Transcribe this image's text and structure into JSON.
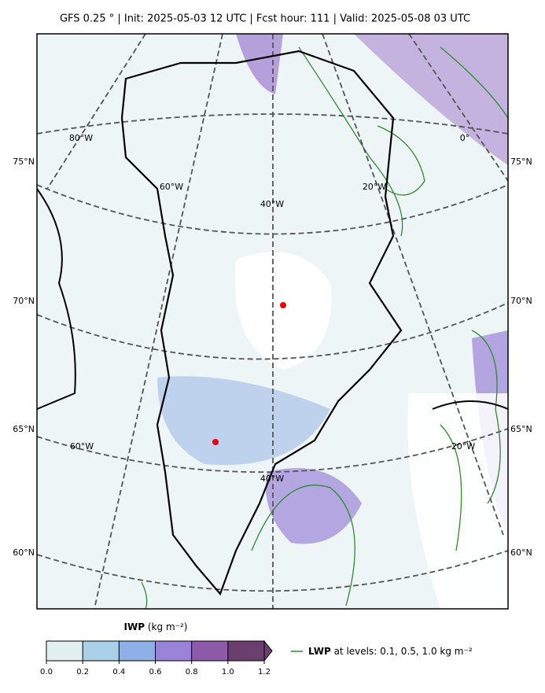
{
  "header": {
    "title": "GFS 0.25 °  |  Init: 2025-05-03 12 UTC  |  Fcst hour: 111  |  Valid: 2025-05-08 03 UTC"
  },
  "map": {
    "lat_labels_left": [
      "75°N",
      "70°N",
      "65°N",
      "60°N"
    ],
    "lat_labels_right": [
      "75°N",
      "70°N",
      "65°N",
      "60°N"
    ],
    "lon_labels": [
      "80°W",
      "60°W",
      "40°W",
      "20°W",
      "0°",
      "60°W",
      "40°W",
      "20°W"
    ]
  },
  "colorbar": {
    "label_bold": "IWP",
    "label_unit": "(kg m⁻²)",
    "ticks": [
      {
        "value": 0,
        "label": "0.0"
      },
      {
        "value": 0.2,
        "label": "0.2"
      },
      {
        "value": 0.4,
        "label": "0.4"
      },
      {
        "value": 0.6,
        "label": "0.6"
      },
      {
        "value": 0.8,
        "label": "0.8"
      },
      {
        "value": 1.0,
        "label": "1.0"
      },
      {
        "value": 1.2,
        "label": "1.2"
      }
    ],
    "colors": [
      "#e3f0f2",
      "#a9d0e6",
      "#8fb0e6",
      "#9a82d8",
      "#8c5aa8",
      "#6a3f6e"
    ]
  },
  "legend": {
    "bold": "LWP",
    "text": "at levels: 0.1, 0.5, 1.0  kg m⁻²"
  }
}
